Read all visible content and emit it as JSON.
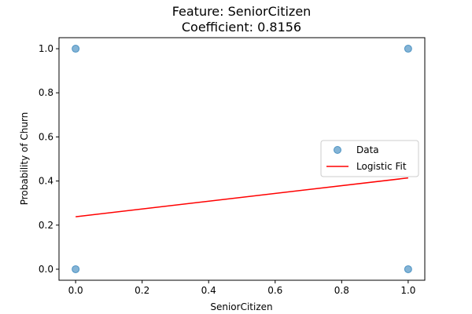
{
  "chart_data": {
    "type": "scatter",
    "title_line1": "Feature: SeniorCitizen",
    "title_line2": "Coefficient: 0.8156",
    "xlabel": "SeniorCitizen",
    "ylabel": "Probability of Churn",
    "xlim": [
      -0.05,
      1.05
    ],
    "ylim": [
      -0.05,
      1.05
    ],
    "xticks": [
      0.0,
      0.2,
      0.4,
      0.6,
      0.8,
      1.0
    ],
    "yticks": [
      0.0,
      0.2,
      0.4,
      0.6,
      0.8,
      1.0
    ],
    "xtick_labels": [
      "0.0",
      "0.2",
      "0.4",
      "0.6",
      "0.8",
      "1.0"
    ],
    "ytick_labels": [
      "0.0",
      "0.2",
      "0.4",
      "0.6",
      "0.8",
      "1.0"
    ],
    "grid": false,
    "legend_position": "center-right",
    "series": [
      {
        "name": "Data",
        "kind": "scatter",
        "color": "#1f77b4",
        "points": [
          {
            "x": 0,
            "y": 0
          },
          {
            "x": 0,
            "y": 1
          },
          {
            "x": 1,
            "y": 0
          },
          {
            "x": 1,
            "y": 1
          }
        ]
      },
      {
        "name": "Logistic Fit",
        "kind": "line",
        "color": "#ff0000",
        "points": [
          {
            "x": 0,
            "y": 0.238
          },
          {
            "x": 1,
            "y": 0.414
          }
        ]
      }
    ]
  }
}
